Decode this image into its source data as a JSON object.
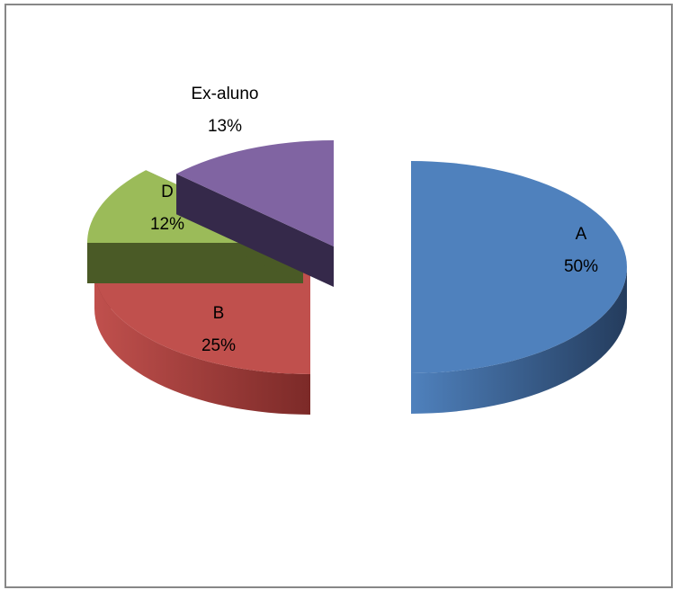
{
  "chart_data": {
    "type": "pie",
    "style": "3d-exploded",
    "title": "",
    "legend": "none",
    "slices": [
      {
        "label": "A",
        "value": 50,
        "percent": "50%",
        "color": "#4f81bd",
        "side_color": "#243c5d"
      },
      {
        "label": "B",
        "value": 25,
        "percent": "25%",
        "color": "#c0504d",
        "side_color": "#7c2a28"
      },
      {
        "label": "D",
        "value": 12,
        "percent": "12%",
        "color": "#9bbb59",
        "side_color": "#4a5a26"
      },
      {
        "label": "Ex-aluno",
        "value": 13,
        "percent": "13%",
        "color": "#8064a2",
        "side_color": "#35294a"
      }
    ]
  }
}
